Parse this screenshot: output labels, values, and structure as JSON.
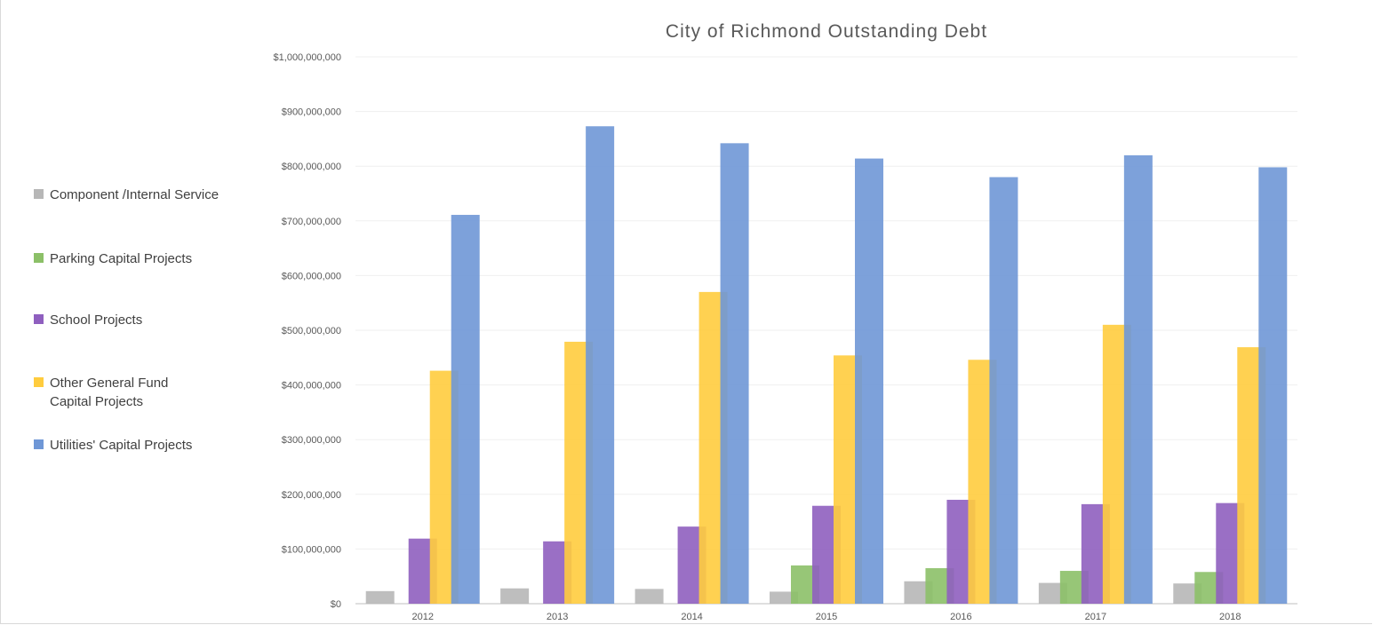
{
  "chart_data": {
    "type": "bar",
    "title": "City of Richmond Outstanding Debt",
    "xlabel": "",
    "ylabel": "",
    "ylim": [
      0,
      1000000000
    ],
    "yticks": [
      "$0",
      "$100,000,000",
      "$200,000,000",
      "$300,000,000",
      "$400,000,000",
      "$500,000,000",
      "$600,000,000",
      "$700,000,000",
      "$800,000,000",
      "$900,000,000",
      "$1,000,000,000"
    ],
    "categories": [
      "2012",
      "2013",
      "2014",
      "2015",
      "2016",
      "2017",
      "2018"
    ],
    "grid": true,
    "legend_position": "left",
    "series": [
      {
        "name": "Component /Internal Service",
        "color": "#b7b7b7",
        "values": [
          23000000,
          28000000,
          27000000,
          22000000,
          41000000,
          38000000,
          37000000
        ]
      },
      {
        "name": "Parking Capital Projects",
        "color": "#8cc068",
        "values": [
          0,
          0,
          0,
          70000000,
          65000000,
          60000000,
          58000000
        ]
      },
      {
        "name": "School Projects",
        "color": "#8f5fbf",
        "values": [
          119000000,
          114000000,
          141000000,
          179000000,
          190000000,
          182000000,
          184000000
        ]
      },
      {
        "name": "Other General Fund Capital Projects",
        "color": "#ffcc3e",
        "values": [
          426000000,
          479000000,
          570000000,
          454000000,
          446000000,
          510000000,
          469000000
        ]
      },
      {
        "name": "Utilities' Capital Projects",
        "color": "#6f97d6",
        "values": [
          711000000,
          873000000,
          842000000,
          814000000,
          780000000,
          820000000,
          798000000
        ]
      }
    ]
  }
}
